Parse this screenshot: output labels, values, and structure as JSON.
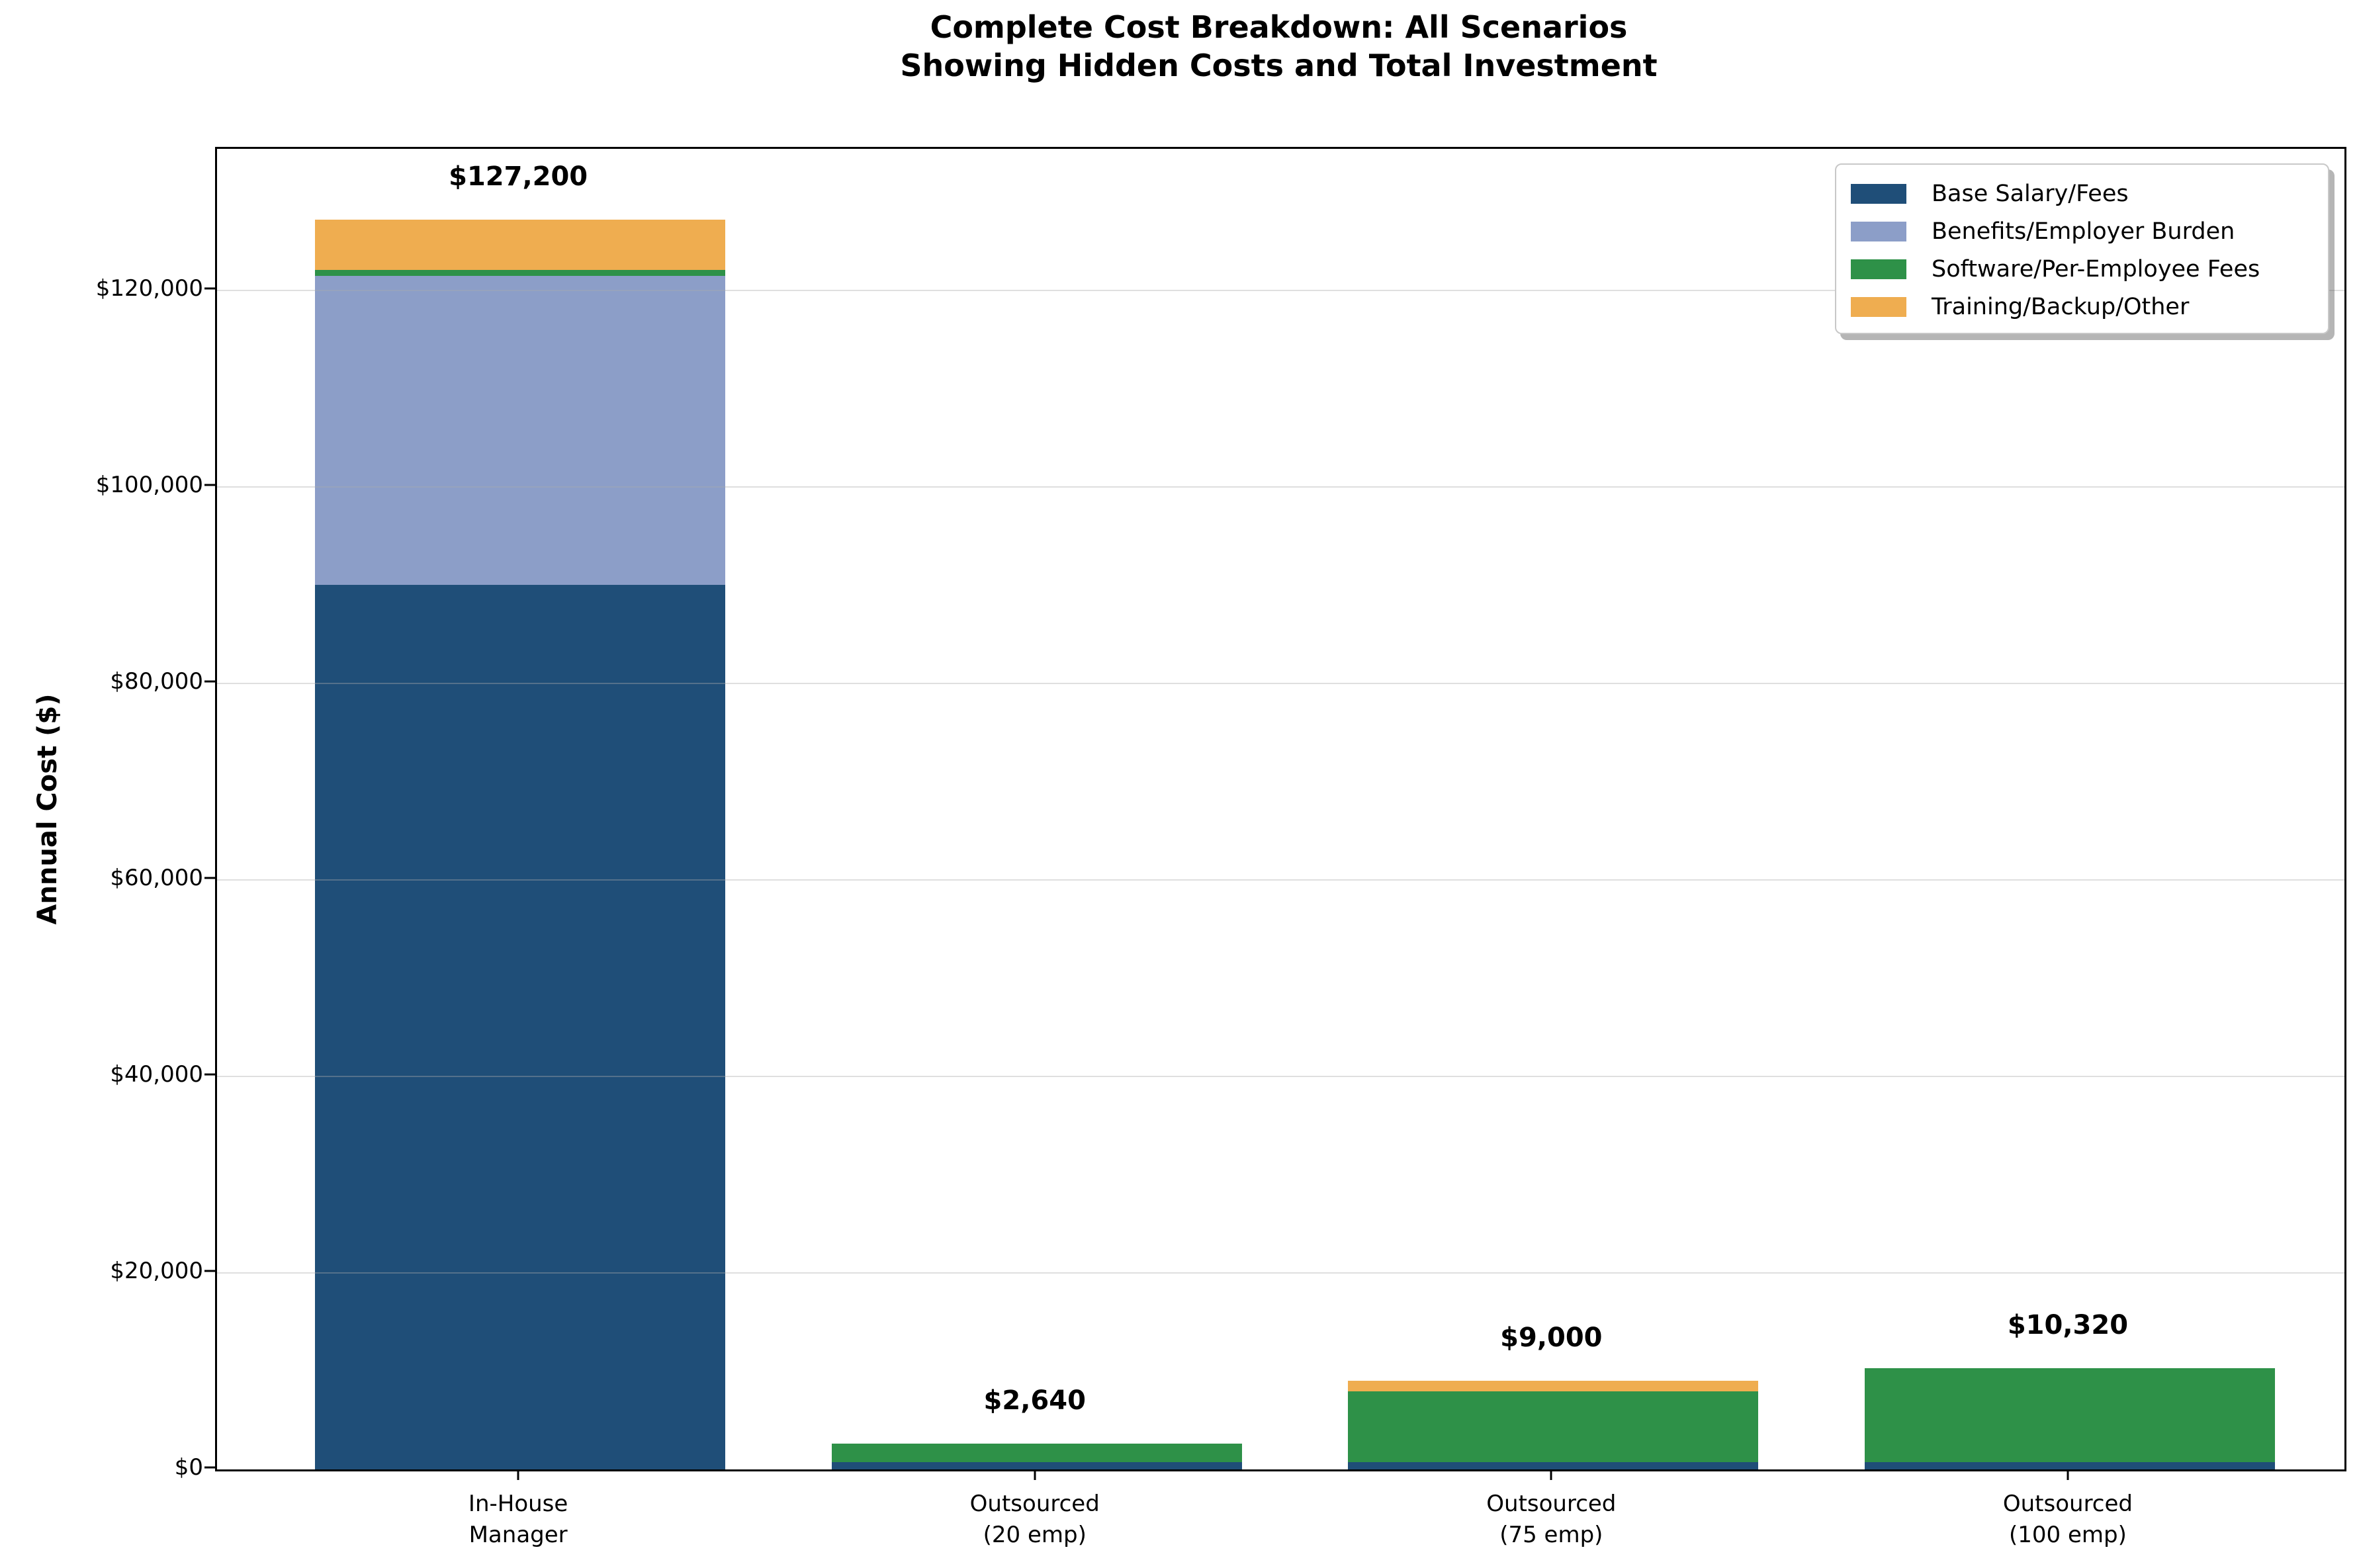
{
  "title": {
    "line1": "Complete Cost Breakdown: All Scenarios",
    "line2": "Showing Hidden Costs and Total Investment"
  },
  "y_axis": {
    "label": "Annual Cost ($)",
    "tick_labels": [
      "$0",
      "$20,000",
      "$40,000",
      "$60,000",
      "$80,000",
      "$100,000",
      "$120,000"
    ]
  },
  "x_axis": {
    "category_labels": [
      "In-House\nManager",
      "Outsourced\n(20 emp)",
      "Outsourced\n(75 emp)",
      "Outsourced\n(100 emp)"
    ]
  },
  "legend": {
    "entries": [
      "Base Salary/Fees",
      "Benefits/Employer Burden",
      "Software/Per-Employee Fees",
      "Training/Backup/Other"
    ]
  },
  "colors": {
    "base_salary": "#1F4E78",
    "benefits": "#8C9EC8",
    "software": "#2E9148",
    "training": "#EFAD50",
    "grid": "#AAAAAA",
    "spine": "#000000"
  },
  "chart_data": {
    "type": "bar",
    "stacked": true,
    "title": "Complete Cost Breakdown: All Scenarios\nShowing Hidden Costs and Total Investment",
    "categories": [
      "In-House\nManager",
      "Outsourced\n(20 emp)",
      "Outsourced\n(75 emp)",
      "Outsourced\n(100 emp)"
    ],
    "series": [
      {
        "name": "Base Salary/Fees",
        "color": "#1F4E78",
        "values": [
          90000,
          720,
          720,
          720
        ]
      },
      {
        "name": "Benefits/Employer Burden",
        "color": "#8C9EC8",
        "values": [
          31500,
          0,
          0,
          0
        ]
      },
      {
        "name": "Software/Per-Employee Fees",
        "color": "#2E9148",
        "values": [
          600,
          1920,
          7200,
          9600
        ]
      },
      {
        "name": "Training/Backup/Other",
        "color": "#EFAD50",
        "values": [
          5100,
          0,
          1080,
          0
        ]
      }
    ],
    "totals": [
      127200,
      2640,
      9000,
      10320
    ],
    "total_labels": [
      "$127,200",
      "$2,640",
      "$9,000",
      "$10,320"
    ],
    "xlabel": "",
    "ylabel": "Annual Cost ($)",
    "ylim": [
      0,
      134400
    ],
    "yticks": [
      0,
      20000,
      40000,
      60000,
      80000,
      100000,
      120000
    ],
    "ytick_labels": [
      "$0",
      "$20,000",
      "$40,000",
      "$60,000",
      "$80,000",
      "$100,000",
      "$120,000"
    ],
    "grid": "horizontal",
    "legend_position": "upper right"
  }
}
